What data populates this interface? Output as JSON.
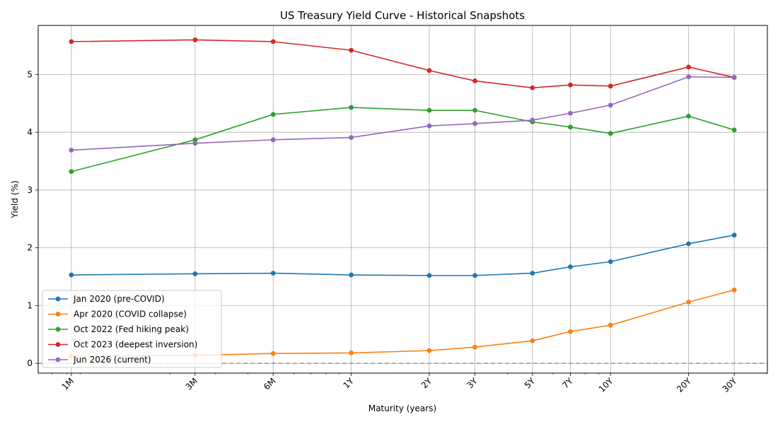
{
  "chart_data": {
    "type": "line",
    "title": "US Treasury Yield Curve - Historical Snapshots",
    "xlabel": "Maturity (years)",
    "ylabel": "Yield (%)",
    "x_scale": "log",
    "categories": [
      "1M",
      "3M",
      "6M",
      "1Y",
      "2Y",
      "3Y",
      "5Y",
      "7Y",
      "10Y",
      "20Y",
      "30Y"
    ],
    "x_years": [
      0.0833,
      0.25,
      0.5,
      1,
      2,
      3,
      5,
      7,
      10,
      20,
      30
    ],
    "ylim": [
      -0.17,
      5.85
    ],
    "yticks": [
      "0",
      "1",
      "2",
      "3",
      "4",
      "5"
    ],
    "grid": true,
    "reference_line": {
      "y": 0,
      "style": "dashed",
      "color": "#808080"
    },
    "legend_position": "lower-left",
    "series": [
      {
        "name": "Jan 2020 (pre-COVID)",
        "color": "#1f77b4",
        "values": [
          1.53,
          1.55,
          1.56,
          1.53,
          1.52,
          1.52,
          1.56,
          1.67,
          1.76,
          2.07,
          2.22
        ]
      },
      {
        "name": "Apr 2020 (COVID collapse)",
        "color": "#ff7f0e",
        "values": [
          0.12,
          0.14,
          0.17,
          0.18,
          0.22,
          0.28,
          0.39,
          0.55,
          0.66,
          1.06,
          1.27
        ]
      },
      {
        "name": "Oct 2022 (Fed hiking peak)",
        "color": "#2ca02c",
        "values": [
          3.32,
          3.87,
          4.31,
          4.43,
          4.38,
          4.38,
          4.18,
          4.09,
          3.98,
          4.28,
          4.04
        ]
      },
      {
        "name": "Oct 2023 (deepest inversion)",
        "color": "#d62728",
        "values": [
          5.57,
          5.6,
          5.57,
          5.42,
          5.07,
          4.89,
          4.77,
          4.82,
          4.8,
          5.13,
          4.95
        ]
      },
      {
        "name": "Jun 2026 (current)",
        "color": "#9467bd",
        "values": [
          3.69,
          3.81,
          3.87,
          3.91,
          4.11,
          4.15,
          4.21,
          4.33,
          4.47,
          4.96,
          4.95
        ]
      }
    ]
  }
}
